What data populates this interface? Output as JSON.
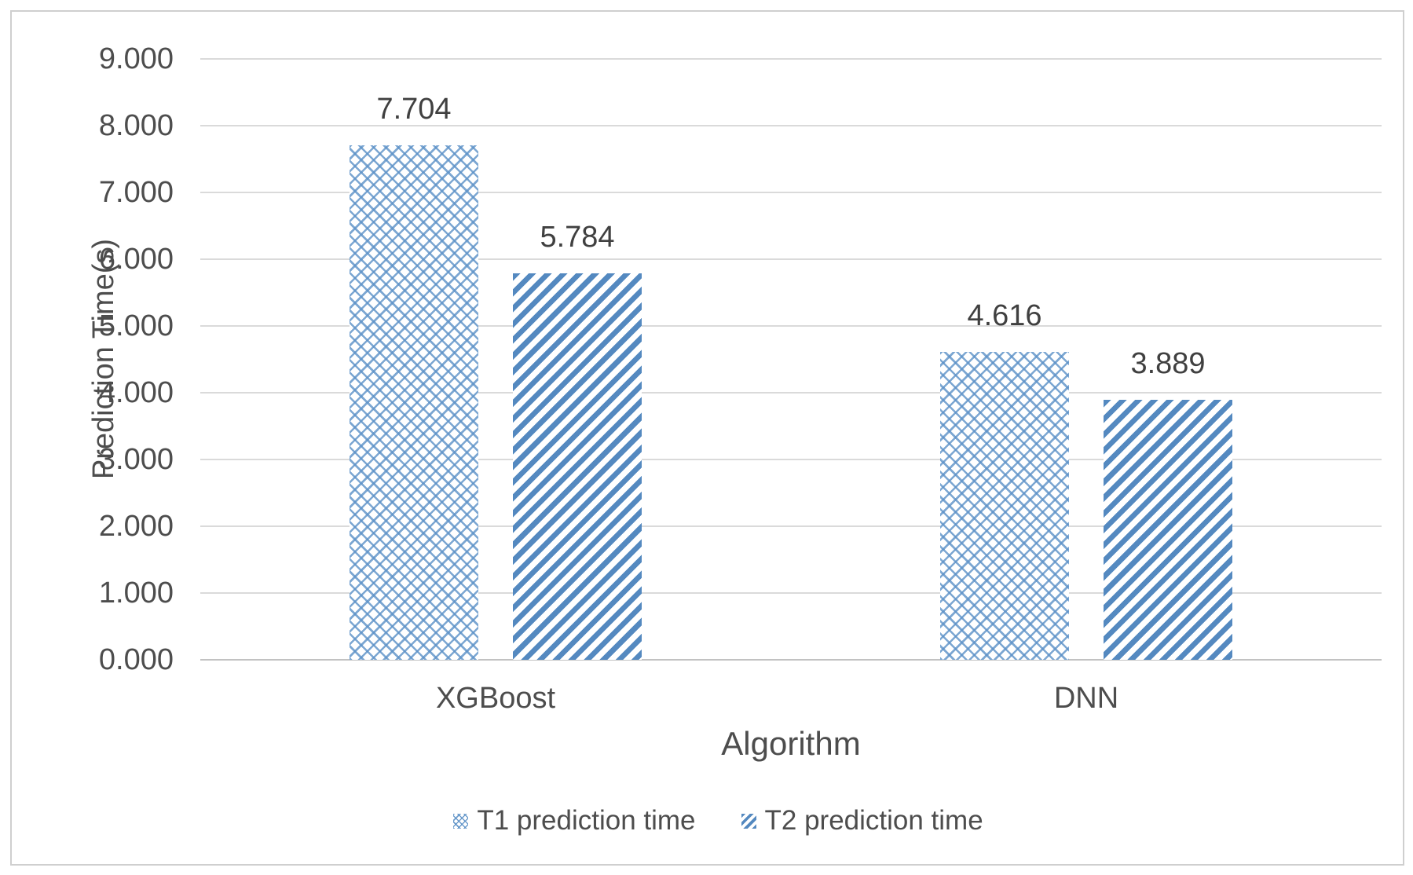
{
  "chart_data": {
    "type": "bar",
    "title": "",
    "categories": [
      "XGBoost",
      "DNN"
    ],
    "series": [
      {
        "name": "T1 prediction time",
        "pattern": "crosshatch",
        "values": [
          7.704,
          4.616
        ],
        "value_labels": [
          "7.704",
          "4.616"
        ]
      },
      {
        "name": "T2 prediction time",
        "pattern": "diagonal-stripe",
        "values": [
          5.784,
          3.889
        ],
        "value_labels": [
          "5.784",
          "3.889"
        ]
      }
    ],
    "xlabel": "Algorithm",
    "ylabel": "Prediction Time(s)",
    "ylim": [
      0,
      9
    ],
    "ytick_step": 1,
    "ytick_labels": [
      "0.000",
      "1.000",
      "2.000",
      "3.000",
      "4.000",
      "5.000",
      "6.000",
      "7.000",
      "8.000",
      "9.000"
    ],
    "grid": "horizontal",
    "legend_position": "bottom",
    "colors": {
      "bar_stripe_blue": "#5489c0",
      "bar_crosshatch_blue": "#5c91c7",
      "gridline": "#dadada",
      "axis_line": "#c2c2c2",
      "text": "#4d4d4d",
      "frame_border": "#cfcfcf",
      "background": "#ffffff"
    }
  }
}
